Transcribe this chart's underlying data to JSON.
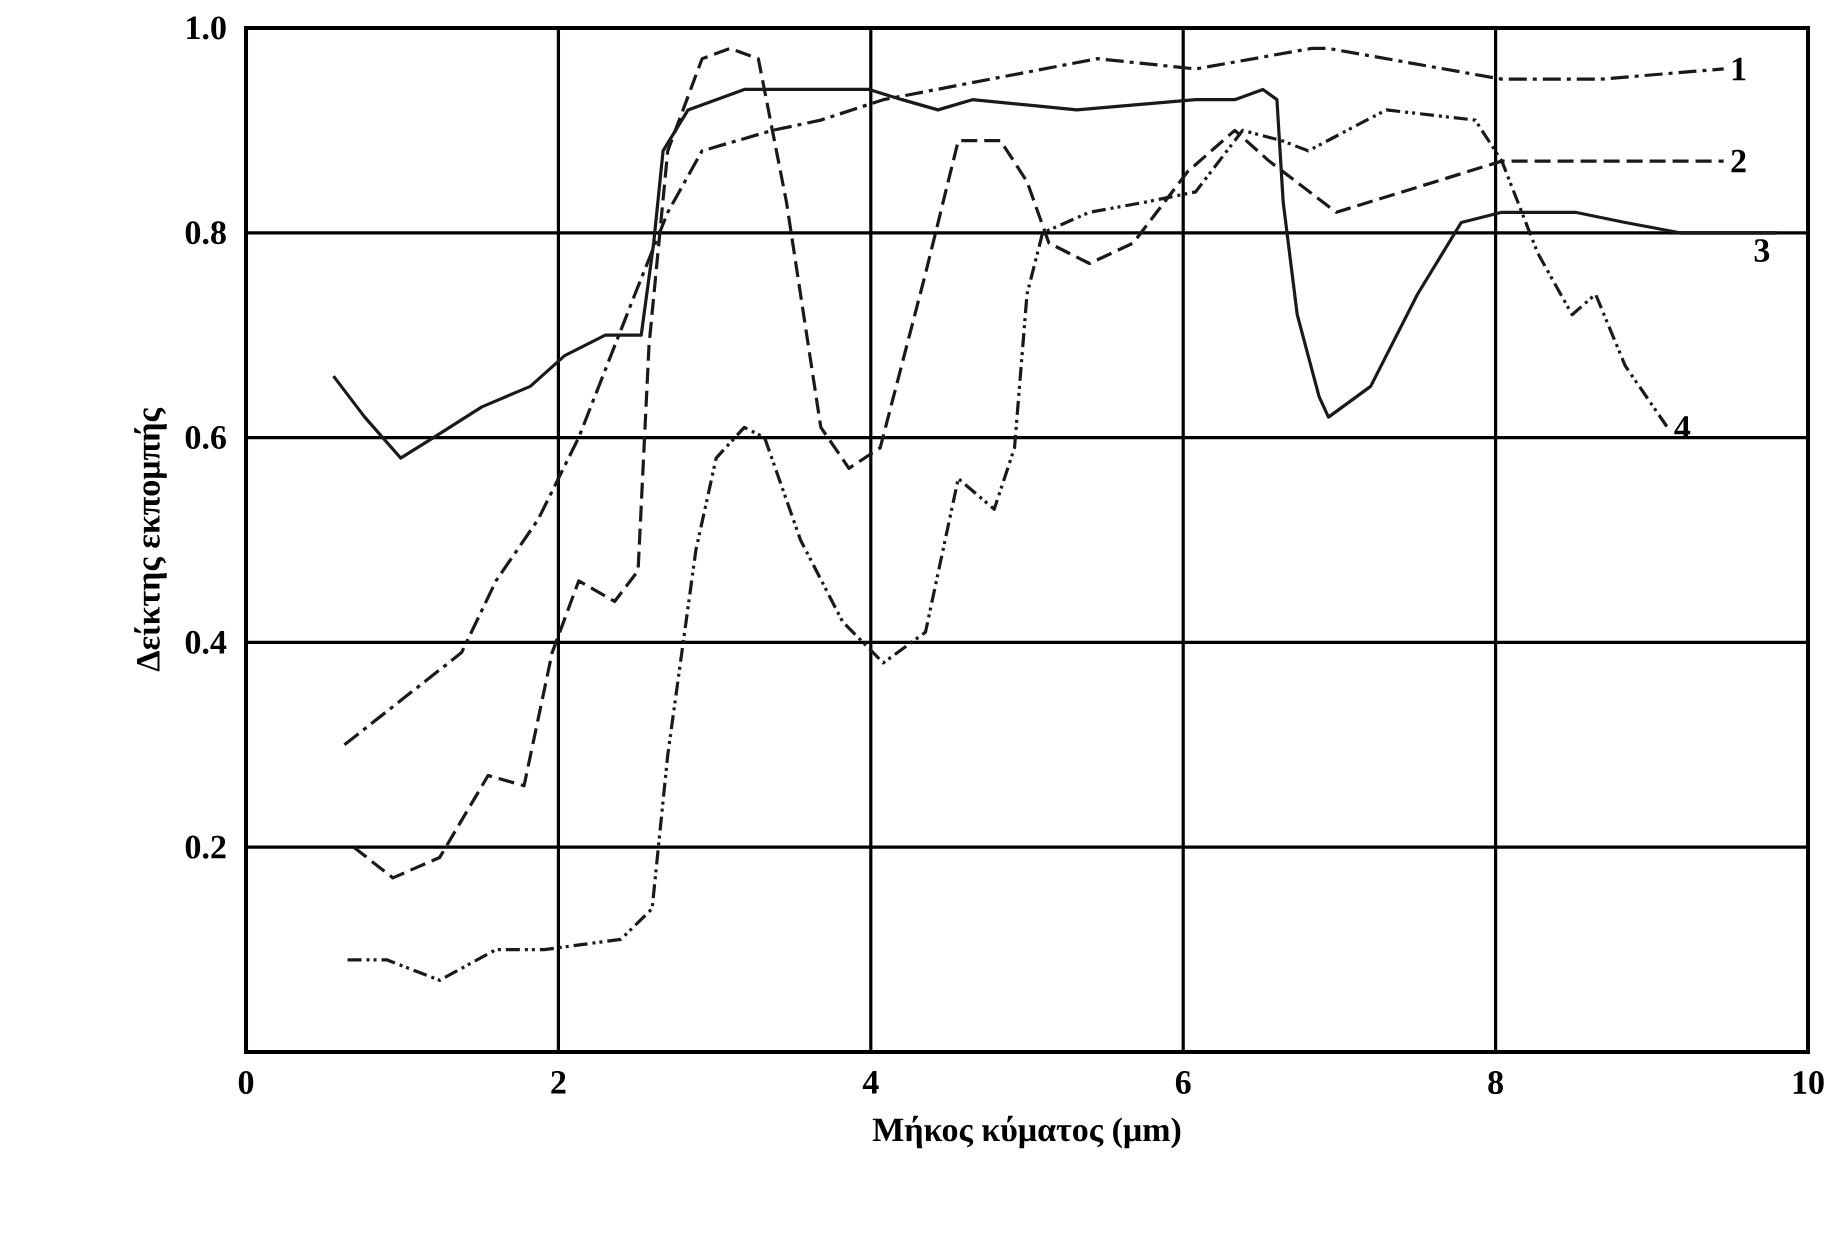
{
  "chart_data": {
    "type": "line",
    "xlabel": "Μήκος κύματος (μm)",
    "ylabel": "Δείκτης εκπομπής",
    "xlim": [
      0,
      10
    ],
    "ylim": [
      0,
      1.0
    ],
    "xticks": [
      0,
      2,
      4,
      6,
      8,
      10
    ],
    "yticks": [
      0.2,
      0.4,
      0.6,
      0.8,
      {
        "value": 1.0,
        "label": "1.0"
      }
    ],
    "grid": true,
    "legend": false,
    "marker": "none",
    "series": [
      {
        "name": "1",
        "color": "#1a1a1a",
        "line_style": "dashdot",
        "x": [
          0.63,
          1.38,
          1.6,
          1.87,
          2.13,
          2.49,
          2.7,
          2.92,
          3.37,
          3.68,
          4.08,
          5.45,
          6.08,
          6.82,
          6.93,
          8.04,
          8.67,
          9.46
        ],
        "values": [
          0.3,
          0.39,
          0.46,
          0.52,
          0.6,
          0.74,
          0.82,
          0.88,
          0.9,
          0.91,
          0.93,
          0.97,
          0.96,
          0.98,
          0.98,
          0.95,
          0.95,
          0.96
        ]
      },
      {
        "name": "2",
        "color": "#1a1a1a",
        "line_style": "dashed",
        "x": [
          0.69,
          0.94,
          1.24,
          1.55,
          1.78,
          1.96,
          2.13,
          2.36,
          2.51,
          2.58,
          2.7,
          2.92,
          3.1,
          3.28,
          3.46,
          3.68,
          3.86,
          4.06,
          4.35,
          4.56,
          4.83,
          5.0,
          5.14,
          5.4,
          5.68,
          6.03,
          6.33,
          6.55,
          6.98,
          8.04,
          9.46
        ],
        "values": [
          0.2,
          0.17,
          0.19,
          0.27,
          0.26,
          0.39,
          0.46,
          0.44,
          0.47,
          0.69,
          0.88,
          0.97,
          0.98,
          0.97,
          0.83,
          0.61,
          0.57,
          0.59,
          0.76,
          0.89,
          0.89,
          0.85,
          0.79,
          0.77,
          0.79,
          0.86,
          0.9,
          0.87,
          0.82,
          0.87,
          0.87
        ]
      },
      {
        "name": "3",
        "color": "#1a1a1a",
        "line_style": "solid",
        "x": [
          0.56,
          0.76,
          0.99,
          1.2,
          1.51,
          1.82,
          2.04,
          2.3,
          2.53,
          2.61,
          2.67,
          2.83,
          3.19,
          3.68,
          3.99,
          4.2,
          4.43,
          4.65,
          5.32,
          6.08,
          6.33,
          6.51,
          6.6,
          6.64,
          6.73,
          6.87,
          6.93,
          7.2,
          7.5,
          7.78,
          8.04,
          8.51,
          8.83,
          9.18,
          9.8
        ],
        "values": [
          0.66,
          0.62,
          0.58,
          0.6,
          0.63,
          0.65,
          0.68,
          0.7,
          0.7,
          0.79,
          0.88,
          0.92,
          0.94,
          0.94,
          0.94,
          0.93,
          0.92,
          0.93,
          0.92,
          0.93,
          0.93,
          0.94,
          0.93,
          0.83,
          0.72,
          0.64,
          0.62,
          0.65,
          0.74,
          0.81,
          0.82,
          0.82,
          0.81,
          0.8,
          0.8
        ]
      },
      {
        "name": "4",
        "color": "#1a1a1a",
        "line_style": "dashdotdot",
        "x": [
          0.65,
          0.9,
          1.24,
          1.6,
          1.91,
          2.4,
          2.6,
          2.7,
          2.88,
          3.01,
          3.19,
          3.32,
          3.55,
          3.82,
          4.08,
          4.35,
          4.56,
          4.79,
          4.92,
          5.0,
          5.1,
          5.4,
          5.76,
          6.08,
          6.38,
          6.63,
          6.8,
          7.3,
          7.87,
          8.04,
          8.27,
          8.49,
          8.64,
          8.83,
          9.1
        ],
        "values": [
          0.09,
          0.09,
          0.07,
          0.1,
          0.1,
          0.11,
          0.14,
          0.29,
          0.49,
          0.58,
          0.61,
          0.6,
          0.5,
          0.42,
          0.38,
          0.41,
          0.56,
          0.53,
          0.59,
          0.74,
          0.8,
          0.82,
          0.83,
          0.84,
          0.9,
          0.89,
          0.88,
          0.92,
          0.91,
          0.87,
          0.78,
          0.72,
          0.74,
          0.67,
          0.61
        ]
      }
    ]
  }
}
